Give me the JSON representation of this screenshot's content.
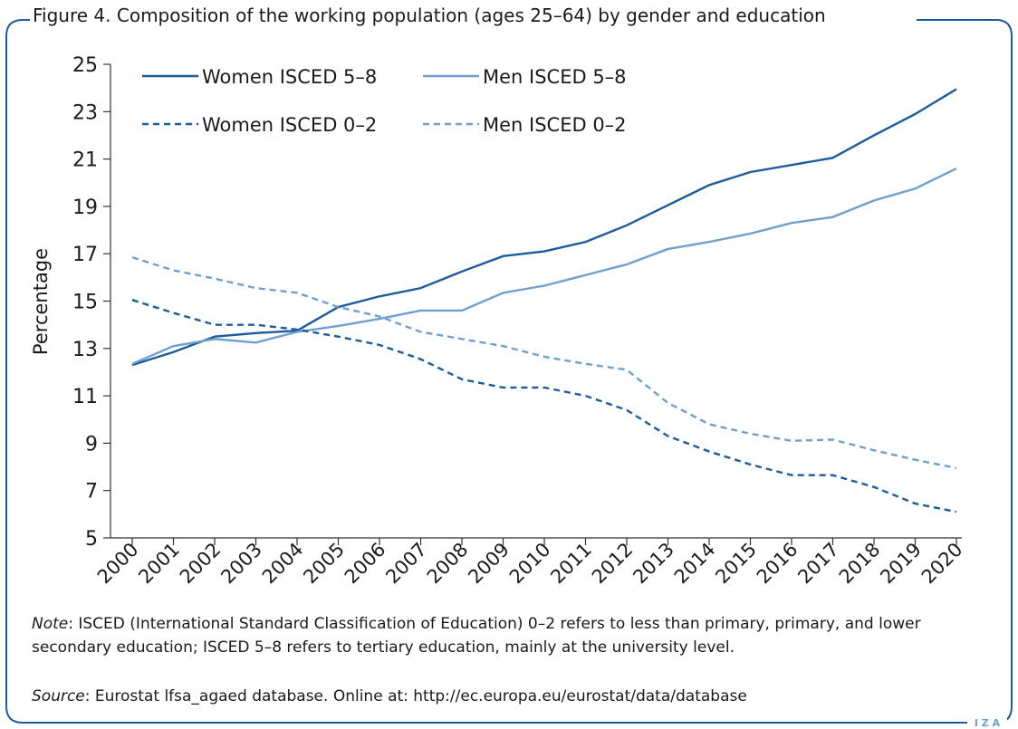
{
  "chart_data": {
    "type": "line",
    "title": "Figure 4. Composition of the working population (ages 25–64) by gender and education",
    "y_label": "Percentage",
    "categories": [
      "2000",
      "2001",
      "2002",
      "2003",
      "2004",
      "2005",
      "2006",
      "2007",
      "2008",
      "2009",
      "2010",
      "2011",
      "2012",
      "2013",
      "2014",
      "2015",
      "2016",
      "2017",
      "2018",
      "2019",
      "2020"
    ],
    "series": [
      {
        "name": "Women ISCED 5–8",
        "color": "#1c5c9c",
        "dashed": false,
        "values": [
          12.3,
          12.85,
          13.5,
          13.65,
          13.75,
          14.75,
          15.2,
          15.55,
          16.25,
          16.9,
          17.1,
          17.5,
          18.2,
          19.05,
          19.9,
          20.45,
          20.75,
          21.05,
          22.0,
          22.9,
          23.95
        ]
      },
      {
        "name": "Men ISCED 5–8",
        "color": "#6f9fcf",
        "dashed": false,
        "values": [
          12.35,
          13.1,
          13.4,
          13.25,
          13.7,
          13.95,
          14.25,
          14.6,
          14.6,
          15.35,
          15.65,
          16.1,
          16.55,
          17.2,
          17.5,
          17.85,
          18.3,
          18.55,
          19.25,
          19.75,
          20.6
        ]
      },
      {
        "name": "Women ISCED 0–2",
        "color": "#1c5c9c",
        "dashed": true,
        "values": [
          15.05,
          14.5,
          14.0,
          14.0,
          13.8,
          13.5,
          13.15,
          12.55,
          11.7,
          11.35,
          11.35,
          11.0,
          10.4,
          9.3,
          8.65,
          8.1,
          7.65,
          7.65,
          7.15,
          6.45,
          6.1
        ]
      },
      {
        "name": "Men ISCED 0–2",
        "color": "#6f9fcf",
        "dashed": true,
        "values": [
          16.85,
          16.3,
          15.95,
          15.55,
          15.35,
          14.75,
          14.35,
          13.7,
          13.4,
          13.1,
          12.65,
          12.35,
          12.1,
          10.7,
          9.8,
          9.4,
          9.1,
          9.15,
          8.7,
          8.3,
          7.95
        ]
      }
    ],
    "ylim": [
      5,
      25
    ],
    "yticks": [
      5,
      7,
      9,
      11,
      13,
      15,
      17,
      19,
      21,
      23,
      25
    ],
    "grid": false,
    "legend": "top-left",
    "note": {
      "label": "Note",
      "text": ": ISCED (International Standard Classification of Education) 0–2 refers to less than primary, primary, and lower secondary education; ISCED 5–8 refers to tertiary education, mainly at the university level."
    },
    "source": {
      "label": "Source",
      "text": ": Eurostat lfsa_agaed database. Online at: http://ec.europa.eu/eurostat/data/database"
    },
    "logo": "I Z A"
  }
}
